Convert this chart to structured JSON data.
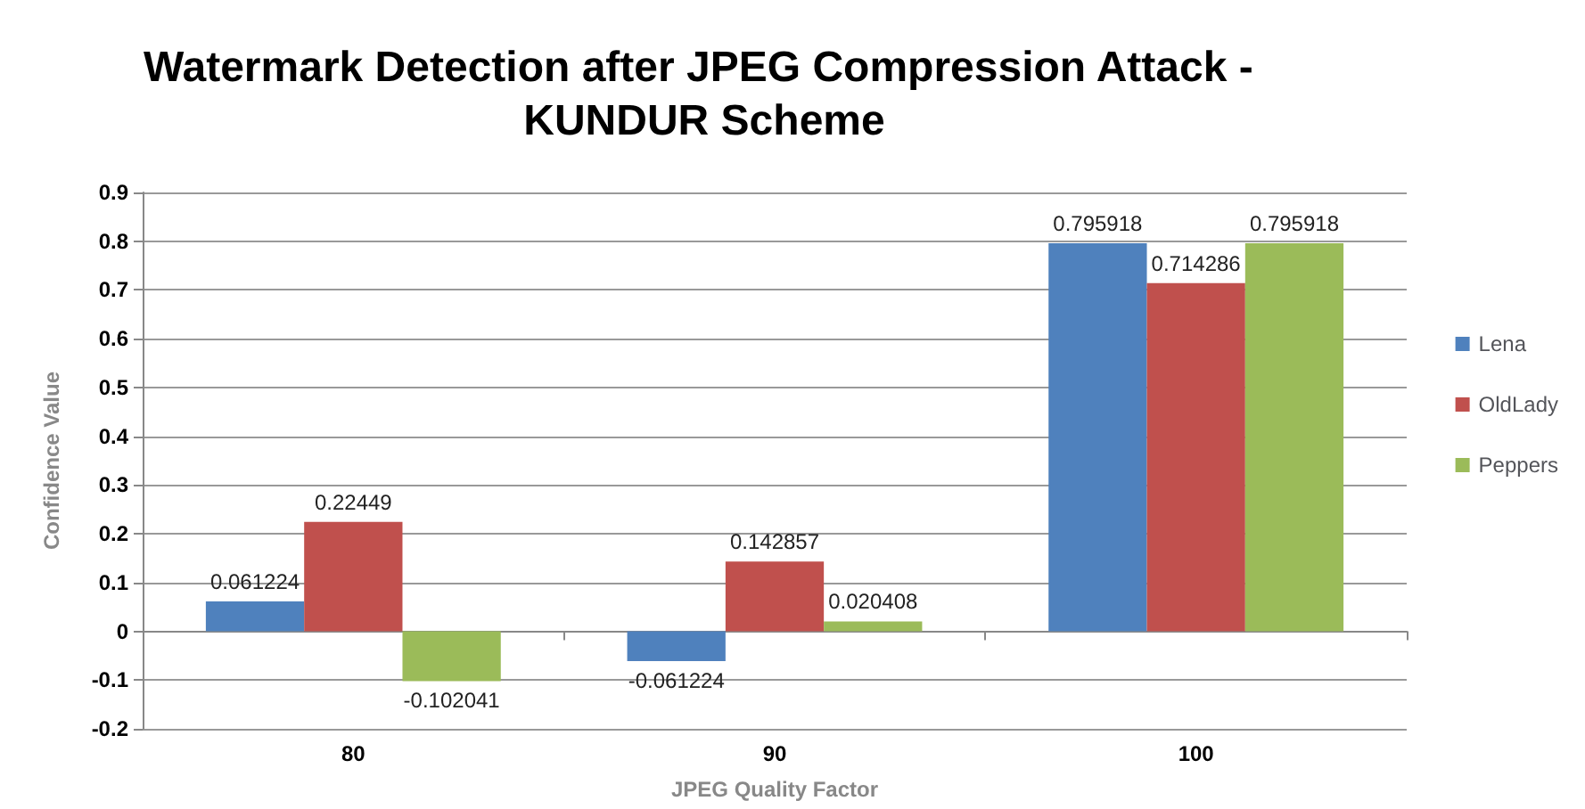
{
  "chart_data": {
    "type": "bar",
    "title": "Watermark Detection after JPEG Compression Attack - KUNDUR Scheme",
    "xlabel": "JPEG Quality Factor",
    "ylabel": "Confidence Value",
    "categories": [
      "80",
      "90",
      "100"
    ],
    "series": [
      {
        "name": "Lena",
        "color": "#4f81bd",
        "values": [
          0.061224,
          -0.061224,
          0.795918
        ]
      },
      {
        "name": "OldLady",
        "color": "#c0504d",
        "values": [
          0.22449,
          0.142857,
          0.714286
        ]
      },
      {
        "name": "Peppers",
        "color": "#9bbb59",
        "values": [
          -0.102041,
          0.020408,
          0.795918
        ]
      }
    ],
    "ylim": [
      -0.2,
      0.9
    ],
    "yticks": [
      -0.2,
      -0.1,
      0,
      0.1,
      0.2,
      0.3,
      0.4,
      0.5,
      0.6,
      0.7,
      0.8,
      0.9
    ],
    "grid": "y",
    "legend": "right",
    "data_labels": true
  }
}
